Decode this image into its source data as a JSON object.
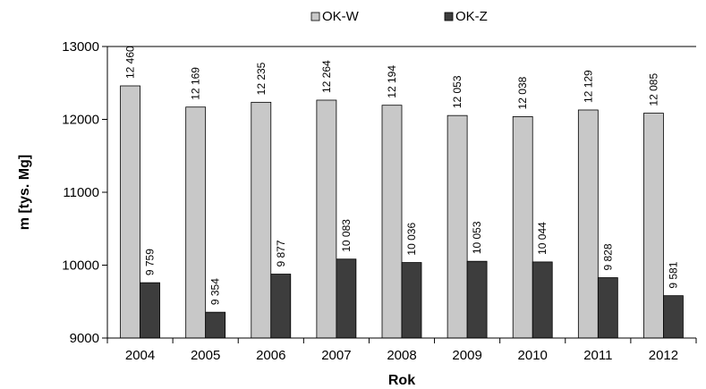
{
  "chart_data": {
    "type": "bar",
    "title": "",
    "xlabel": "Rok",
    "ylabel": "m  [tys. Mg]",
    "categories": [
      "2004",
      "2005",
      "2006",
      "2007",
      "2008",
      "2009",
      "2010",
      "2011",
      "2012"
    ],
    "series": [
      {
        "name": "OK-W",
        "color": "#c8c8c8",
        "values": [
          12460,
          12169,
          12235,
          12264,
          12194,
          12053,
          12038,
          12129,
          12085
        ],
        "labels": [
          "12 460",
          "12 169",
          "12 235",
          "12 264",
          "12 194",
          "12 053",
          "12 038",
          "12 129",
          "12 085"
        ]
      },
      {
        "name": "OK-Z",
        "color": "#3d3d3d",
        "values": [
          9759,
          9354,
          9877,
          10083,
          10036,
          10053,
          10044,
          9828,
          9581
        ],
        "labels": [
          "9 759",
          "9 354",
          "9 877",
          "10 083",
          "10 036",
          "10 053",
          "10 044",
          "9 828",
          "9 581"
        ]
      }
    ],
    "ylim": [
      9000,
      13000
    ],
    "yticks": [
      9000,
      10000,
      11000,
      12000,
      13000
    ],
    "ytick_labels": [
      "9000",
      "10000",
      "11000",
      "12000",
      "13000"
    ],
    "grid": "major horizontal gridline at 13000 only",
    "legend_position": "top-center"
  }
}
